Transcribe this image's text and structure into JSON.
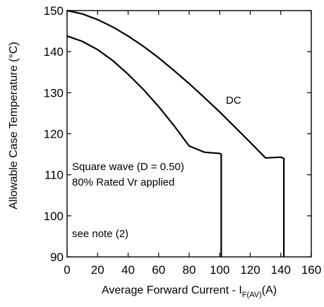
{
  "chart_data": {
    "type": "line",
    "title": "",
    "xlabel": "Average Forward Current - I",
    "xlabel_sub": "F(AV)",
    "xlabel_unit": "(A)",
    "ylabel": "Allowable Case Temperature (°C)",
    "xlim": [
      0,
      160
    ],
    "ylim": [
      90,
      150
    ],
    "xticks": [
      0,
      20,
      40,
      60,
      80,
      100,
      120,
      140,
      160
    ],
    "yticks": [
      90,
      100,
      110,
      120,
      130,
      140,
      150
    ],
    "grid": false,
    "series": [
      {
        "name": "DC",
        "x": [
          0,
          10,
          20,
          30,
          40,
          50,
          60,
          70,
          80,
          90,
          100,
          110,
          120,
          130,
          140,
          142,
          142
        ],
        "y": [
          150,
          149.2,
          147.8,
          146,
          143.8,
          141.3,
          138.5,
          135.4,
          132.2,
          128.8,
          125.3,
          121.6,
          117.9,
          114.1,
          114.3,
          114,
          90
        ]
      },
      {
        "name": "",
        "x": [
          0,
          10,
          20,
          30,
          40,
          50,
          60,
          70,
          80,
          90,
          100,
          101,
          101
        ],
        "y": [
          143.8,
          142.5,
          140.5,
          137.8,
          134.5,
          130.8,
          126.6,
          122,
          117,
          115.5,
          115.2,
          115,
          90
        ]
      }
    ],
    "annotations": {
      "dc_label": "DC",
      "square_wave": "Square wave (D = 0.50)",
      "rated_vr": "80% Rated Vr  applied",
      "note": "see note (2)"
    }
  }
}
